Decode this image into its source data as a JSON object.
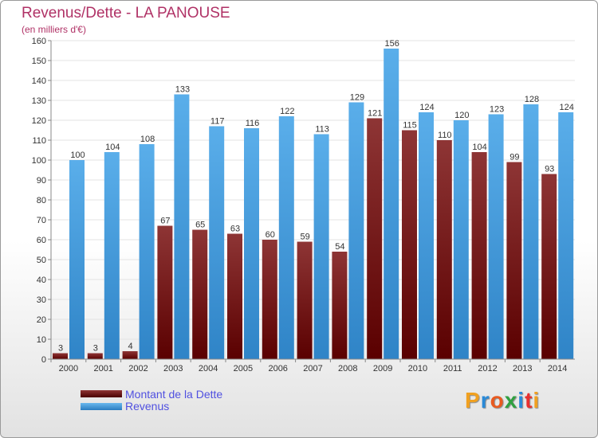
{
  "logo_text": "Proxiti",
  "colors": {
    "title": "#b03266",
    "debt": "#7a1a1a",
    "revenue": "#4aa3e3",
    "legend_text": "#5050e0",
    "logo_letters": [
      "#f0a020",
      "#2a8ad8",
      "#e85a20",
      "#30a040",
      "#2a8ad8",
      "#e83030",
      "#f0a020"
    ]
  },
  "chart_data": {
    "type": "bar",
    "title": "Revenus/Dette - LA PANOUSE",
    "subtitle": "(en milliers d'€)",
    "xlabel": "",
    "ylabel": "",
    "ylim": [
      0,
      160
    ],
    "yticks": [
      0,
      10,
      20,
      30,
      40,
      50,
      60,
      70,
      80,
      90,
      100,
      110,
      120,
      130,
      140,
      150,
      160
    ],
    "grid": true,
    "categories": [
      "2000",
      "2001",
      "2002",
      "2003",
      "2004",
      "2005",
      "2006",
      "2007",
      "2008",
      "2009",
      "2010",
      "2011",
      "2012",
      "2013",
      "2014"
    ],
    "series": [
      {
        "name": "Montant de la Dette",
        "values": [
          3,
          3,
          4,
          67,
          65,
          63,
          60,
          59,
          54,
          121,
          115,
          110,
          104,
          99,
          93
        ]
      },
      {
        "name": "Revenus",
        "values": [
          100,
          104,
          108,
          133,
          117,
          116,
          122,
          113,
          129,
          156,
          124,
          120,
          123,
          128,
          124
        ]
      }
    ]
  }
}
